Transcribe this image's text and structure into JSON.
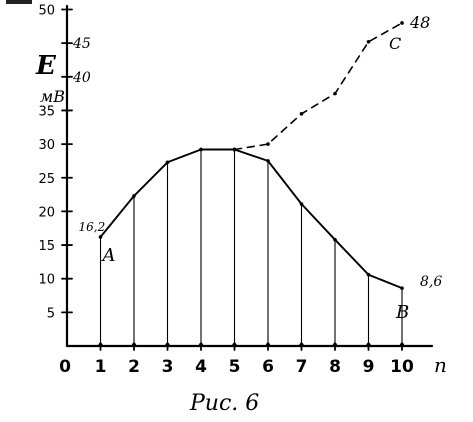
{
  "chart_data": {
    "type": "line",
    "title": "",
    "caption": "Рис. 6",
    "xlabel": "n",
    "ylabel": "E",
    "ylabel_unit": "мВ",
    "x_ticks": [
      "0",
      "1",
      "2",
      "3",
      "4",
      "5",
      "6",
      "7",
      "8",
      "9",
      "10"
    ],
    "y_ticks": [
      "5",
      "10",
      "15",
      "20",
      "25",
      "30",
      "35",
      "40",
      "45",
      "50"
    ],
    "xlim": [
      0,
      10.8
    ],
    "ylim": [
      0,
      50
    ],
    "grid": false,
    "series": [
      {
        "style": "solid",
        "x": [
          1,
          2,
          3,
          4,
          5,
          6,
          7,
          8,
          9,
          10
        ],
        "y": [
          16.2,
          22.3,
          27.3,
          29.2,
          29.2,
          27.5,
          21.1,
          15.8,
          10.6,
          8.6
        ],
        "drop_lines": true
      },
      {
        "style": "dashed",
        "x": [
          5,
          6,
          7,
          8,
          9,
          10
        ],
        "y": [
          29.2,
          30.0,
          34.5,
          37.5,
          45.2,
          48
        ]
      }
    ],
    "annotations": [
      {
        "text": "16,2",
        "x": 1,
        "y": 16.2
      },
      {
        "text": "A",
        "x": 1,
        "y": 16.2
      },
      {
        "text": "8,6",
        "x": 10,
        "y": 8.6
      },
      {
        "text": "B",
        "x": 10,
        "y": 8.6
      },
      {
        "text": "48",
        "x": 10,
        "y": 48
      },
      {
        "text": "C",
        "x": 10,
        "y": 48
      }
    ]
  }
}
